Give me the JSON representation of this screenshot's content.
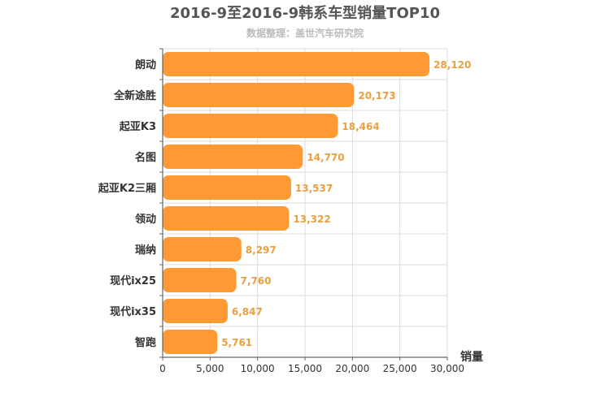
{
  "chart_data": {
    "type": "bar",
    "orientation": "horizontal",
    "title": "2016-9至2016-9韩系车型销量TOP10",
    "subtitle": "数据整理：盖世汽车研究院",
    "xlabel": "销量",
    "ylabel": "",
    "categories": [
      "朗动",
      "全新途胜",
      "起亚K3",
      "名图",
      "起亚K2三厢",
      "领动",
      "瑞纳",
      "现代ix25",
      "现代ix35",
      "智跑"
    ],
    "values": [
      28120,
      20173,
      18464,
      14770,
      13537,
      13322,
      8297,
      7760,
      6847,
      5761
    ],
    "value_labels": [
      "28,120",
      "20,173",
      "18,464",
      "14,770",
      "13,537",
      "13,322",
      "8,297",
      "7,760",
      "6,847",
      "5,761"
    ],
    "xlim": [
      0,
      30000
    ],
    "x_ticks": [
      0,
      5000,
      10000,
      15000,
      20000,
      25000,
      30000
    ],
    "x_tick_labels": [
      "0",
      "5,000",
      "10,000",
      "15,000",
      "20,000",
      "25,000",
      "30,000"
    ],
    "grid": true,
    "legend": "none",
    "colors": {
      "bar": "#ff9933",
      "value_label": "#e8a040",
      "grid": "#dddddd",
      "axis": "#666666"
    }
  }
}
